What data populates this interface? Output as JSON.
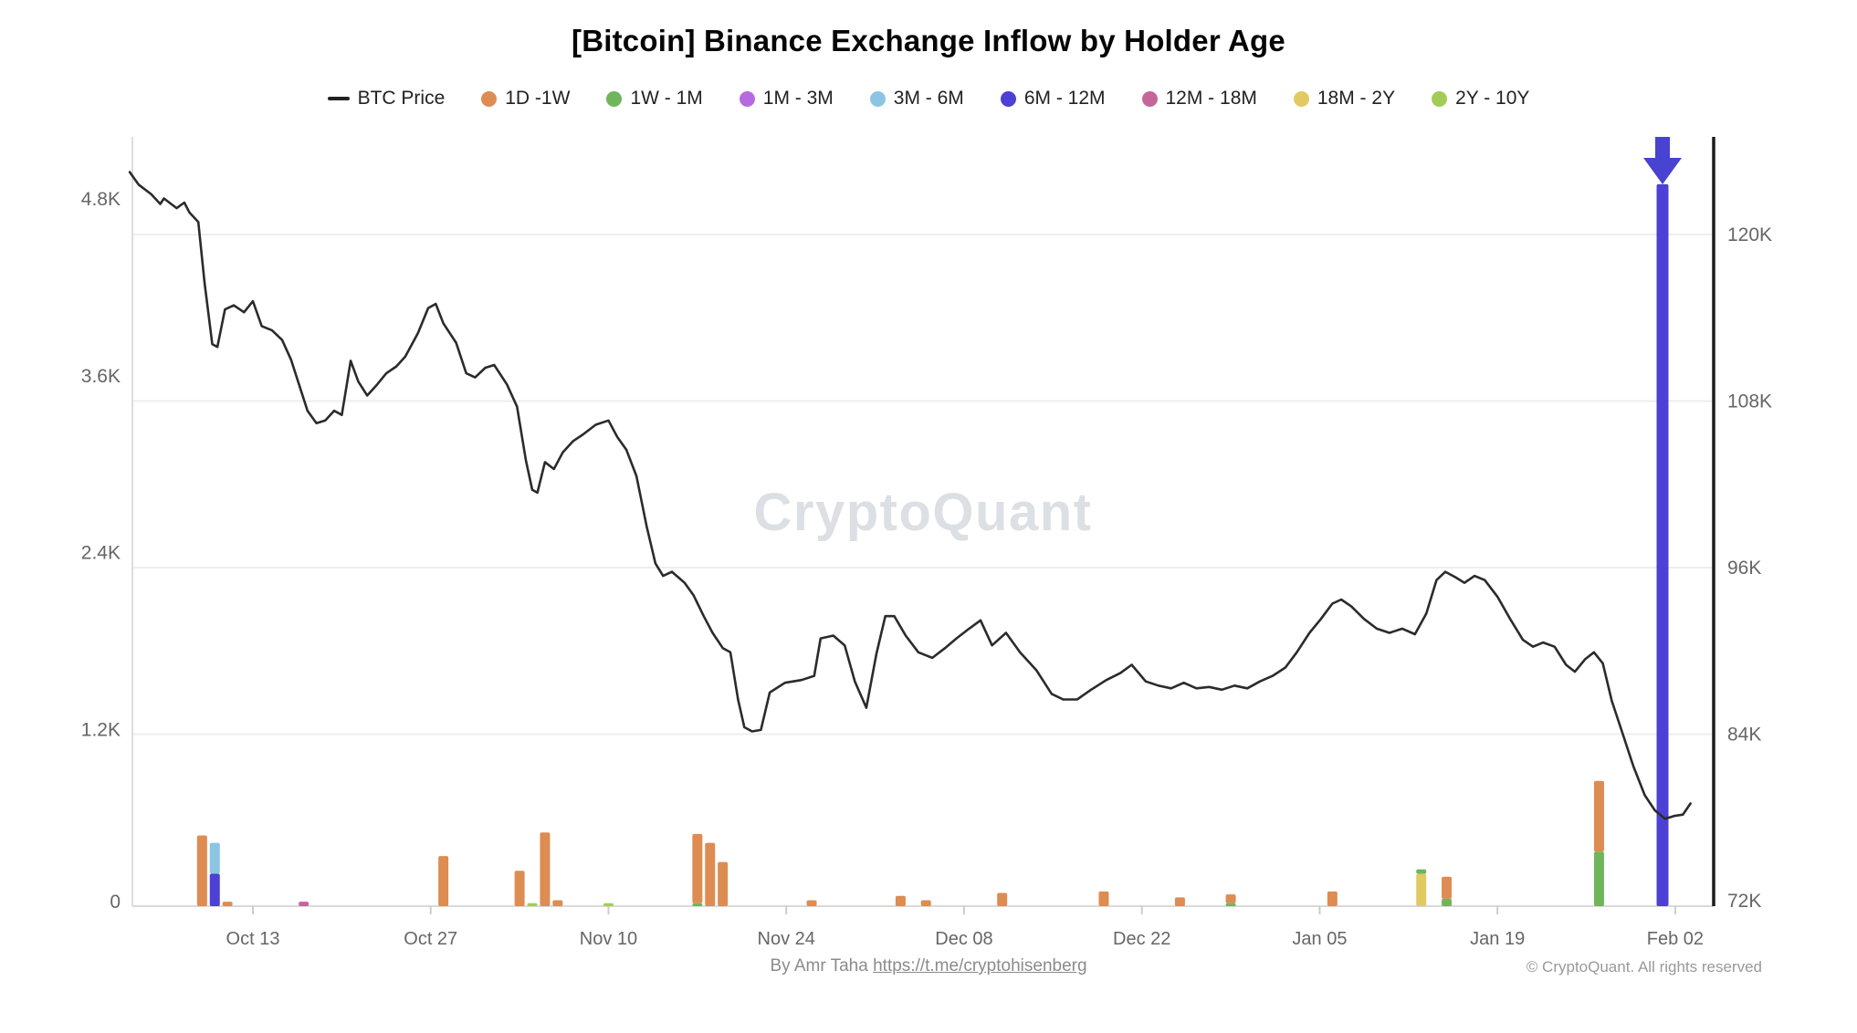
{
  "title": "[Bitcoin] Binance Exchange Inflow by Holder Age",
  "watermark": "CryptoQuant",
  "footer": {
    "byline_prefix": "By Amr Taha ",
    "byline_link": "https://t.me/cryptohisenberg",
    "copyright": "© CryptoQuant. All rights reserved"
  },
  "legend": {
    "price_item": {
      "label": "BTC Price",
      "color": "#222222"
    },
    "items": [
      {
        "label": "1D -1W",
        "color": "#DD8C52"
      },
      {
        "label": "1W - 1M",
        "color": "#6FB55C"
      },
      {
        "label": "1M - 3M",
        "color": "#B46BE0"
      },
      {
        "label": "3M - 6M",
        "color": "#8CC5E3"
      },
      {
        "label": "6M - 12M",
        "color": "#4C40D5"
      },
      {
        "label": "12M - 18M",
        "color": "#C46699"
      },
      {
        "label": "18M - 2Y",
        "color": "#E2CA62"
      },
      {
        "label": "2Y - 10Y",
        "color": "#A4CB57"
      }
    ]
  },
  "chart_data": {
    "type": "line+stacked-bar",
    "title": "[Bitcoin] Binance Exchange Inflow by Holder Age",
    "day_offset_zero": "Oct 13",
    "x_ticks": [
      {
        "label": "Oct 13",
        "day": 0
      },
      {
        "label": "Oct 27",
        "day": 14
      },
      {
        "label": "Nov 10",
        "day": 28
      },
      {
        "label": "Nov 24",
        "day": 42
      },
      {
        "label": "Dec 08",
        "day": 56
      },
      {
        "label": "Dec 22",
        "day": 70
      },
      {
        "label": "Jan 05",
        "day": 84
      },
      {
        "label": "Jan 19",
        "day": 98
      },
      {
        "label": "Feb 02",
        "day": 112
      }
    ],
    "left_axis": {
      "ticks": [
        {
          "label": "4.8K",
          "value_k": 4.8
        },
        {
          "label": "3.6K",
          "value_k": 3.6
        },
        {
          "label": "2.4K",
          "value_k": 2.4
        },
        {
          "label": "1.2K",
          "value_k": 1.2
        },
        {
          "label": "0",
          "value_k": 0
        }
      ],
      "range_k": [
        0,
        5.22
      ]
    },
    "right_axis": {
      "ticks": [
        {
          "label": "120K",
          "value_k": 120
        },
        {
          "label": "108K",
          "value_k": 108
        },
        {
          "label": "96K",
          "value_k": 96
        },
        {
          "label": "84K",
          "value_k": 84
        },
        {
          "label": "72K",
          "value_k": 72
        }
      ],
      "range_k": [
        71.6,
        127.0
      ],
      "grid_values_k": [
        120,
        108,
        96,
        84
      ]
    },
    "price_series": {
      "name": "BTC Price",
      "color": "#2B2B2B",
      "points_day_priceK": [
        [
          -9.7,
          124.5
        ],
        [
          -9,
          123.6
        ],
        [
          -8,
          122.9
        ],
        [
          -7.3,
          122.2
        ],
        [
          -7,
          122.6
        ],
        [
          -6,
          121.9
        ],
        [
          -5.4,
          122.3
        ],
        [
          -5,
          121.6
        ],
        [
          -4.3,
          120.9
        ],
        [
          -3.8,
          116.5
        ],
        [
          -3.2,
          112.1
        ],
        [
          -2.8,
          111.9
        ],
        [
          -2.2,
          114.6
        ],
        [
          -1.5,
          114.9
        ],
        [
          -0.7,
          114.4
        ],
        [
          0,
          115.2
        ],
        [
          0.7,
          113.4
        ],
        [
          1.5,
          113.1
        ],
        [
          2.3,
          112.4
        ],
        [
          3,
          111.0
        ],
        [
          3.7,
          109.0
        ],
        [
          4.3,
          107.3
        ],
        [
          5,
          106.4
        ],
        [
          5.7,
          106.6
        ],
        [
          6.4,
          107.3
        ],
        [
          7,
          107.0
        ],
        [
          7.7,
          110.9
        ],
        [
          8.3,
          109.4
        ],
        [
          9,
          108.4
        ],
        [
          9.7,
          109.1
        ],
        [
          10.5,
          110.0
        ],
        [
          11.3,
          110.5
        ],
        [
          12,
          111.2
        ],
        [
          13,
          112.9
        ],
        [
          13.8,
          114.7
        ],
        [
          14.4,
          115.0
        ],
        [
          15,
          113.6
        ],
        [
          16,
          112.2
        ],
        [
          16.8,
          110.0
        ],
        [
          17.5,
          109.7
        ],
        [
          18.3,
          110.4
        ],
        [
          19,
          110.6
        ],
        [
          20,
          109.2
        ],
        [
          20.8,
          107.6
        ],
        [
          21.5,
          103.7
        ],
        [
          22,
          101.6
        ],
        [
          22.4,
          101.4
        ],
        [
          23,
          103.6
        ],
        [
          23.7,
          103.1
        ],
        [
          24.4,
          104.3
        ],
        [
          25.2,
          105.1
        ],
        [
          26,
          105.6
        ],
        [
          27,
          106.3
        ],
        [
          28,
          106.6
        ],
        [
          28.7,
          105.4
        ],
        [
          29.4,
          104.5
        ],
        [
          30.2,
          102.6
        ],
        [
          31,
          99.0
        ],
        [
          31.7,
          96.3
        ],
        [
          32.3,
          95.4
        ],
        [
          33,
          95.7
        ],
        [
          34,
          94.9
        ],
        [
          34.7,
          94.0
        ],
        [
          35.5,
          92.5
        ],
        [
          36.2,
          91.3
        ],
        [
          37,
          90.2
        ],
        [
          37.6,
          89.9
        ],
        [
          38.2,
          86.5
        ],
        [
          38.7,
          84.5
        ],
        [
          39.3,
          84.2
        ],
        [
          40,
          84.3
        ],
        [
          40.7,
          87.0
        ],
        [
          41.9,
          87.7
        ],
        [
          43.2,
          87.9
        ],
        [
          44.2,
          88.2
        ],
        [
          44.7,
          90.9
        ],
        [
          45.7,
          91.1
        ],
        [
          46.6,
          90.4
        ],
        [
          47.4,
          87.8
        ],
        [
          48.3,
          85.9
        ],
        [
          49.1,
          89.8
        ],
        [
          49.8,
          92.5
        ],
        [
          50.5,
          92.5
        ],
        [
          51.4,
          91.1
        ],
        [
          52.4,
          89.9
        ],
        [
          53.5,
          89.5
        ],
        [
          54.5,
          90.2
        ],
        [
          55.4,
          90.9
        ],
        [
          56.4,
          91.6
        ],
        [
          57.3,
          92.2
        ],
        [
          58.2,
          90.4
        ],
        [
          59.3,
          91.3
        ],
        [
          60.4,
          89.9
        ],
        [
          61.7,
          88.6
        ],
        [
          62.9,
          86.9
        ],
        [
          63.8,
          86.5
        ],
        [
          64.9,
          86.5
        ],
        [
          66,
          87.2
        ],
        [
          67.2,
          87.9
        ],
        [
          68.3,
          88.4
        ],
        [
          69.2,
          89.0
        ],
        [
          70.3,
          87.8
        ],
        [
          71.3,
          87.5
        ],
        [
          72.3,
          87.3
        ],
        [
          73.3,
          87.7
        ],
        [
          74.3,
          87.3
        ],
        [
          75.3,
          87.4
        ],
        [
          76.3,
          87.2
        ],
        [
          77.3,
          87.5
        ],
        [
          78.3,
          87.3
        ],
        [
          79.3,
          87.8
        ],
        [
          80.3,
          88.2
        ],
        [
          81.3,
          88.8
        ],
        [
          82.2,
          89.9
        ],
        [
          83.2,
          91.3
        ],
        [
          84.1,
          92.3
        ],
        [
          85,
          93.4
        ],
        [
          85.7,
          93.7
        ],
        [
          86.5,
          93.2
        ],
        [
          87.5,
          92.3
        ],
        [
          88.5,
          91.6
        ],
        [
          89.5,
          91.3
        ],
        [
          90.5,
          91.6
        ],
        [
          91.5,
          91.2
        ],
        [
          92.4,
          92.7
        ],
        [
          93.2,
          95.1
        ],
        [
          93.9,
          95.7
        ],
        [
          94.7,
          95.3
        ],
        [
          95.4,
          94.9
        ],
        [
          96.2,
          95.4
        ],
        [
          97,
          95.1
        ],
        [
          98,
          93.9
        ],
        [
          99,
          92.3
        ],
        [
          100,
          90.8
        ],
        [
          100.8,
          90.3
        ],
        [
          101.6,
          90.6
        ],
        [
          102.5,
          90.3
        ],
        [
          103.4,
          89.0
        ],
        [
          104.1,
          88.5
        ],
        [
          104.9,
          89.4
        ],
        [
          105.6,
          89.9
        ],
        [
          106.3,
          89.1
        ],
        [
          107,
          86.4
        ],
        [
          107.8,
          84.2
        ],
        [
          108.7,
          81.7
        ],
        [
          109.6,
          79.6
        ],
        [
          110.4,
          78.5
        ],
        [
          111.2,
          77.9
        ],
        [
          111.9,
          78.1
        ],
        [
          112.6,
          78.2
        ],
        [
          113.2,
          79.0
        ]
      ]
    },
    "bars": [
      {
        "date": "Oct 09",
        "day": -4,
        "segments": [
          {
            "bucket": "1D -1W",
            "value_k": 0.48
          }
        ]
      },
      {
        "date": "Oct 10",
        "day": -3,
        "segments": [
          {
            "bucket": "6M - 12M",
            "value_k": 0.22
          },
          {
            "bucket": "3M - 6M",
            "value_k": 0.21
          }
        ]
      },
      {
        "date": "Oct 11",
        "day": -2,
        "segments": [
          {
            "bucket": "1D -1W",
            "value_k": 0.03
          }
        ]
      },
      {
        "date": "Oct 17",
        "day": 4,
        "segments": [
          {
            "bucket": "12M - 18M",
            "value_k": 0.03
          }
        ]
      },
      {
        "date": "Oct 28",
        "day": 15,
        "segments": [
          {
            "bucket": "1D -1W",
            "value_k": 0.34
          }
        ]
      },
      {
        "date": "Nov 03",
        "day": 21,
        "segments": [
          {
            "bucket": "1D -1W",
            "value_k": 0.24
          }
        ]
      },
      {
        "date": "Nov 04",
        "day": 22,
        "segments": [
          {
            "bucket": "2Y - 10Y",
            "value_k": 0.02
          }
        ]
      },
      {
        "date": "Nov 05",
        "day": 23,
        "segments": [
          {
            "bucket": "1D -1W",
            "value_k": 0.5
          }
        ]
      },
      {
        "date": "Nov 06",
        "day": 24,
        "segments": [
          {
            "bucket": "1D -1W",
            "value_k": 0.04
          }
        ]
      },
      {
        "date": "Nov 10",
        "day": 28,
        "segments": [
          {
            "bucket": "2Y - 10Y",
            "value_k": 0.02
          }
        ]
      },
      {
        "date": "Nov 17",
        "day": 35,
        "segments": [
          {
            "bucket": "1W - 1M",
            "value_k": 0.02
          },
          {
            "bucket": "1D -1W",
            "value_k": 0.47
          }
        ]
      },
      {
        "date": "Nov 18",
        "day": 36,
        "segments": [
          {
            "bucket": "1D -1W",
            "value_k": 0.43
          }
        ]
      },
      {
        "date": "Nov 19",
        "day": 37,
        "segments": [
          {
            "bucket": "1D -1W",
            "value_k": 0.3
          }
        ]
      },
      {
        "date": "Nov 26",
        "day": 44,
        "segments": [
          {
            "bucket": "1D -1W",
            "value_k": 0.04
          }
        ]
      },
      {
        "date": "Dec 03",
        "day": 51,
        "segments": [
          {
            "bucket": "1D -1W",
            "value_k": 0.07
          }
        ]
      },
      {
        "date": "Dec 05",
        "day": 53,
        "segments": [
          {
            "bucket": "1D -1W",
            "value_k": 0.04
          }
        ]
      },
      {
        "date": "Dec 11",
        "day": 59,
        "segments": [
          {
            "bucket": "1D -1W",
            "value_k": 0.09
          }
        ]
      },
      {
        "date": "Dec 19",
        "day": 67,
        "segments": [
          {
            "bucket": "1D -1W",
            "value_k": 0.1
          }
        ]
      },
      {
        "date": "Dec 25",
        "day": 73,
        "segments": [
          {
            "bucket": "1D -1W",
            "value_k": 0.06
          }
        ]
      },
      {
        "date": "Dec 29",
        "day": 77,
        "segments": [
          {
            "bucket": "1W - 1M",
            "value_k": 0.02
          },
          {
            "bucket": "1D -1W",
            "value_k": 0.06
          }
        ]
      },
      {
        "date": "Jan 06",
        "day": 85,
        "segments": [
          {
            "bucket": "1D -1W",
            "value_k": 0.1
          }
        ]
      },
      {
        "date": "Jan 13",
        "day": 92,
        "segments": [
          {
            "bucket": "18M - 2Y",
            "value_k": 0.22
          },
          {
            "bucket": "1W - 1M",
            "value_k": 0.03
          }
        ]
      },
      {
        "date": "Jan 15",
        "day": 94,
        "segments": [
          {
            "bucket": "1W - 1M",
            "value_k": 0.05
          },
          {
            "bucket": "1D -1W",
            "value_k": 0.15
          }
        ]
      },
      {
        "date": "Jan 27",
        "day": 106,
        "segments": [
          {
            "bucket": "1W - 1M",
            "value_k": 0.37
          },
          {
            "bucket": "1D -1W",
            "value_k": 0.48
          }
        ]
      },
      {
        "date": "Feb 01",
        "day": 111,
        "segments": [
          {
            "bucket": "6M - 12M",
            "value_k": 4.9
          }
        ]
      }
    ],
    "annotation_arrow": {
      "date": "Feb 01",
      "day": 111,
      "color": "#4843D0"
    }
  }
}
